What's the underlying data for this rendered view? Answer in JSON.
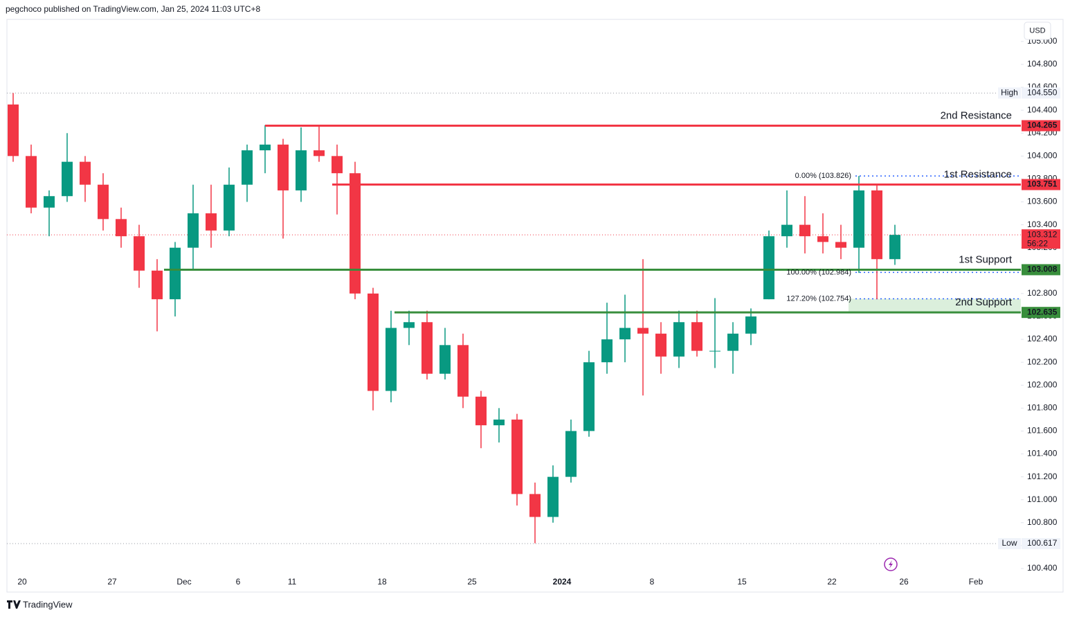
{
  "header": {
    "text": "pegchoco published on TradingView.com, Jan 25, 2024 11:03 UTC+8"
  },
  "chart_data": {
    "type": "candlestick",
    "currency": "USD",
    "categories": [
      null,
      "20",
      null,
      null,
      null,
      null,
      "27",
      null,
      null,
      null,
      "Dec",
      null,
      null,
      "6",
      null,
      null,
      "11",
      null,
      null,
      null,
      null,
      "18",
      null,
      null,
      null,
      null,
      "25",
      null,
      null,
      null,
      null,
      "2024",
      null,
      null,
      null,
      null,
      "8",
      null,
      null,
      null,
      null,
      "15",
      null,
      null,
      null,
      null,
      "22",
      null,
      null,
      null,
      "26",
      null,
      null,
      null,
      "Feb",
      null
    ],
    "open": [
      104.45,
      104.0,
      103.55,
      103.65,
      103.95,
      103.75,
      103.45,
      103.3,
      103.0,
      102.75,
      103.2,
      103.5,
      103.35,
      103.75,
      104.05,
      104.1,
      103.7,
      104.05,
      104.0,
      103.85,
      102.8,
      101.95,
      102.5,
      102.55,
      102.1,
      102.35,
      101.9,
      101.65,
      101.7,
      101.05,
      100.85,
      101.2,
      101.6,
      102.2,
      102.4,
      102.5,
      102.45,
      102.25,
      102.55,
      102.3,
      102.3,
      102.45,
      102.75,
      103.3,
      103.4,
      103.3,
      103.25,
      103.2,
      103.7,
      103.1,
      null,
      null,
      null,
      null,
      null,
      null
    ],
    "high": [
      104.55,
      104.1,
      103.7,
      104.2,
      104.0,
      103.85,
      103.55,
      103.4,
      103.1,
      103.25,
      103.75,
      103.75,
      103.9,
      104.1,
      104.27,
      104.15,
      104.25,
      104.27,
      104.1,
      103.95,
      102.85,
      102.65,
      102.65,
      102.65,
      102.5,
      102.45,
      101.95,
      101.8,
      101.75,
      101.15,
      101.3,
      101.7,
      102.3,
      102.72,
      102.79,
      103.1,
      102.55,
      102.65,
      102.65,
      102.76,
      102.55,
      102.67,
      103.35,
      103.7,
      103.65,
      103.5,
      103.4,
      103.826,
      103.75,
      103.4,
      null,
      null,
      null,
      null,
      null,
      null
    ],
    "low": [
      103.95,
      103.5,
      103.3,
      103.6,
      103.6,
      103.35,
      103.2,
      102.85,
      102.47,
      102.6,
      103.0,
      103.2,
      103.3,
      103.6,
      103.85,
      103.28,
      103.6,
      103.95,
      103.49,
      102.75,
      101.78,
      101.85,
      102.35,
      102.05,
      102.05,
      101.8,
      101.45,
      101.5,
      100.95,
      100.62,
      100.8,
      101.15,
      101.55,
      102.1,
      102.2,
      101.91,
      102.1,
      102.15,
      102.25,
      102.15,
      102.1,
      102.35,
      102.75,
      103.2,
      103.15,
      103.15,
      103.1,
      102.98,
      102.75,
      103.05,
      null,
      null,
      null,
      null,
      null,
      null
    ],
    "close": [
      104.0,
      103.55,
      103.65,
      103.95,
      103.75,
      103.45,
      103.3,
      103.0,
      102.75,
      103.2,
      103.5,
      103.35,
      103.75,
      104.05,
      104.1,
      103.7,
      104.05,
      104.0,
      103.85,
      102.8,
      101.95,
      102.5,
      102.55,
      102.1,
      102.35,
      101.9,
      101.65,
      101.7,
      101.05,
      100.85,
      101.2,
      101.6,
      102.2,
      102.4,
      102.5,
      102.45,
      102.25,
      102.55,
      102.3,
      102.3,
      102.45,
      102.6,
      103.3,
      103.4,
      103.3,
      103.25,
      103.2,
      103.7,
      103.1,
      103.312,
      null,
      null,
      null,
      null,
      null,
      null
    ],
    "up_color": "#089981",
    "down_color": "#f23645",
    "ylim": [
      100.2,
      105.2
    ],
    "yticks": [
      {
        "value": 100.4,
        "label": "100.400"
      },
      {
        "value": 100.6,
        "label": "100.600"
      },
      {
        "value": 100.8,
        "label": "100.800"
      },
      {
        "value": 101.0,
        "label": "101.000"
      },
      {
        "value": 101.2,
        "label": "101.200"
      },
      {
        "value": 101.4,
        "label": "101.400"
      },
      {
        "value": 101.6,
        "label": "101.600"
      },
      {
        "value": 101.8,
        "label": "101.800"
      },
      {
        "value": 102.0,
        "label": "102.000"
      },
      {
        "value": 102.2,
        "label": "102.200"
      },
      {
        "value": 102.4,
        "label": "102.400"
      },
      {
        "value": 102.6,
        "label": "102.600"
      },
      {
        "value": 102.8,
        "label": "102.800"
      },
      {
        "value": 103.0,
        "label": "103.000"
      },
      {
        "value": 103.2,
        "label": "103.200"
      },
      {
        "value": 103.4,
        "label": "103.400"
      },
      {
        "value": 103.6,
        "label": "103.600"
      },
      {
        "value": 103.8,
        "label": "103.800"
      },
      {
        "value": 104.0,
        "label": "104.000"
      },
      {
        "value": 104.2,
        "label": "104.200"
      },
      {
        "value": 104.4,
        "label": "104.400"
      },
      {
        "value": 104.6,
        "label": "104.600"
      },
      {
        "value": 104.8,
        "label": "104.800"
      },
      {
        "value": 105.0,
        "label": "105.000"
      }
    ],
    "high_marker": {
      "label": "High",
      "value": {
        "value": 104.55,
        "label": "104.550"
      }
    },
    "low_marker": {
      "label": "Low",
      "value": 100.617
    },
    "last_price": {
      "value": 103.312,
      "countdown": "56:22",
      "color": "#f23645"
    },
    "levels": [
      {
        "name": "2nd Resistance",
        "value": 104.265,
        "color": "#f23645"
      },
      {
        "name": "1st Resistance",
        "value": 103.751,
        "color": "#f23645"
      },
      {
        "name": "1st Support",
        "value": 103.008,
        "color": "#388e3c"
      },
      {
        "name": "2nd Support",
        "value": 102.635,
        "color": "#388e3c"
      }
    ],
    "fib": {
      "color": "#2962ff",
      "levels": [
        {
          "label": "0.00% (103.826)",
          "value": 103.826
        },
        {
          "label": "100.00% (102.984)",
          "value": 102.984
        },
        {
          "label": "127.20% (102.754)",
          "value": 102.754
        }
      ]
    }
  },
  "footer": {
    "brand": "TradingView"
  }
}
